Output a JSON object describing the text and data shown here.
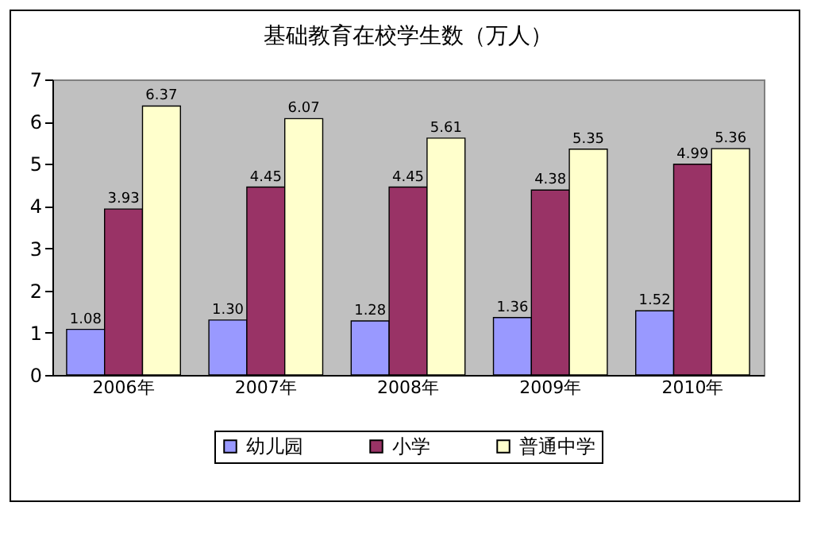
{
  "chart_data": {
    "type": "bar",
    "title": "基础教育在校学生数（万人）",
    "categories": [
      "2006年",
      "2007年",
      "2008年",
      "2009年",
      "2010年"
    ],
    "series": [
      {
        "name": "幼儿园",
        "color": "#9999ff",
        "values": [
          1.08,
          1.3,
          1.28,
          1.36,
          1.52
        ],
        "value_labels": [
          "1.08",
          "1.30",
          "1.28",
          "1.36",
          "1.52"
        ]
      },
      {
        "name": "小学",
        "color": "#993366",
        "values": [
          3.93,
          4.45,
          4.45,
          4.38,
          4.99
        ],
        "value_labels": [
          "3.93",
          "4.45",
          "4.45",
          "4.38",
          "4.99"
        ]
      },
      {
        "name": "普通中学",
        "color": "#ffffcc",
        "values": [
          6.37,
          6.07,
          5.61,
          5.35,
          5.36
        ],
        "value_labels": [
          "6.37",
          "6.07",
          "5.61",
          "5.35",
          "5.36"
        ]
      }
    ],
    "ylim": [
      0,
      7
    ],
    "yticks": [
      0,
      1,
      2,
      3,
      4,
      5,
      6,
      7
    ],
    "grid": false,
    "legend": "bottom",
    "data_labels": true
  }
}
